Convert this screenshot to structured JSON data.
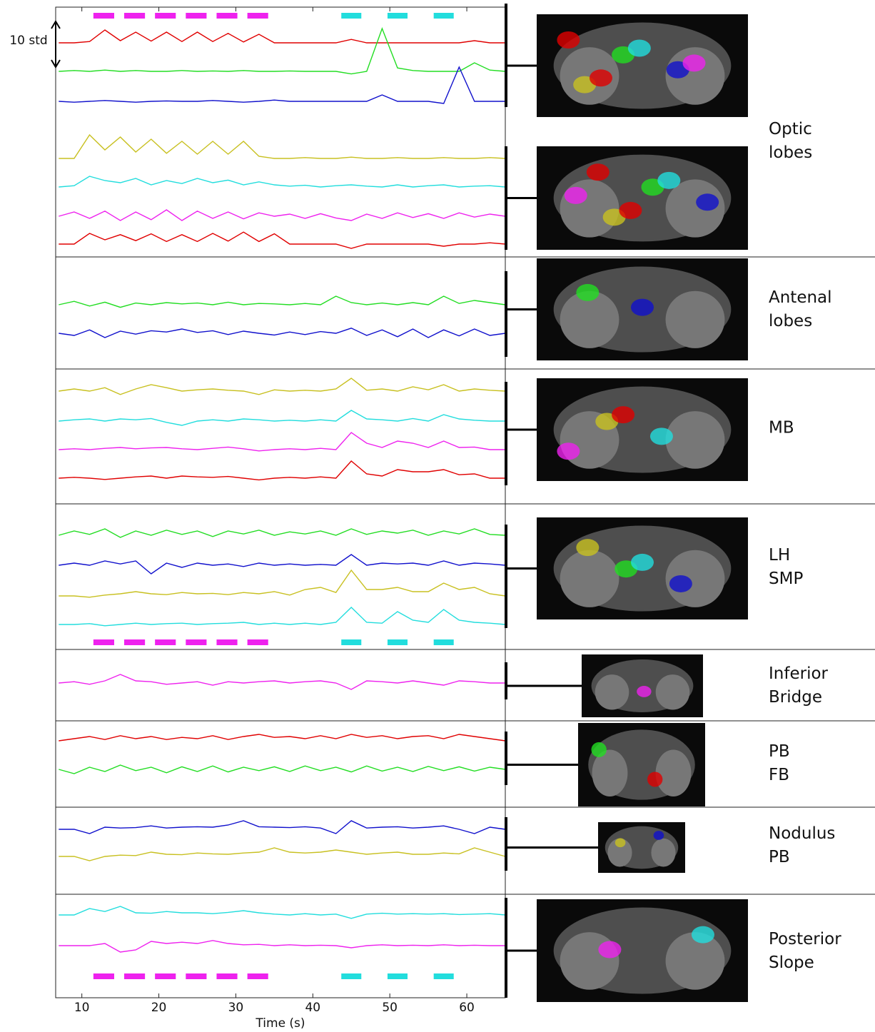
{
  "chart_data": {
    "type": "line",
    "xlabel": "Time (s)",
    "scale_label": "10 std",
    "xlim": [
      6.6,
      65
    ],
    "xticks": [
      10,
      20,
      30,
      40,
      50,
      60
    ],
    "x": [
      7,
      9,
      11,
      13,
      15,
      17,
      19,
      21,
      23,
      25,
      27,
      29,
      31,
      33,
      35,
      37,
      39,
      41,
      43,
      45,
      47,
      49,
      51,
      53,
      55,
      57,
      59,
      61,
      63,
      65
    ],
    "stimuli": [
      {
        "color": "#ee22ee",
        "intervals": [
          [
            11.5,
            14.2
          ],
          [
            15.5,
            18.2
          ],
          [
            19.5,
            22.2
          ],
          [
            23.5,
            26.2
          ],
          [
            27.5,
            30.2
          ],
          [
            31.5,
            34.2
          ]
        ]
      },
      {
        "color": "#22dddd",
        "intervals": [
          [
            43.7,
            46.3
          ],
          [
            49.7,
            52.3
          ],
          [
            55.7,
            58.3
          ]
        ]
      }
    ],
    "panels": [
      {
        "label": [
          "Optic",
          "lobes"
        ],
        "series": [
          {
            "color": "#e00000",
            "values": [
              0,
              0,
              0.3,
              3,
              0.5,
              2.5,
              0.4,
              2.5,
              0.3,
              2.5,
              0.3,
              2.2,
              0.2,
              2,
              0,
              0,
              0,
              0,
              0,
              0.8,
              0,
              0,
              0,
              0,
              0,
              0,
              0,
              0.5,
              0,
              0
            ]
          },
          {
            "color": "#22dd22",
            "values": [
              0,
              0.2,
              0,
              0.3,
              0,
              0.2,
              0,
              0,
              0.2,
              0,
              0.1,
              0,
              0.2,
              0,
              0,
              0.1,
              0,
              0,
              0,
              -0.6,
              0,
              10,
              0.8,
              0.2,
              0,
              0,
              0,
              2,
              0.3,
              0
            ]
          },
          {
            "color": "#1010cc",
            "values": [
              0,
              -0.2,
              0,
              0.2,
              0,
              -0.2,
              0,
              0.1,
              0,
              0,
              0.2,
              0,
              -0.2,
              0,
              0.3,
              0,
              0,
              0,
              0,
              0,
              0,
              1.5,
              0,
              0,
              0,
              -0.5,
              8,
              0,
              0,
              0
            ]
          },
          {
            "color": "#c8c020",
            "values": [
              0,
              0,
              5.5,
              2,
              5,
              1.5,
              4.5,
              1.2,
              4,
              1,
              4,
              1,
              4,
              0.5,
              0,
              0,
              0.2,
              0,
              0,
              0.3,
              0,
              0,
              0.2,
              0,
              0,
              0.2,
              0,
              0,
              0.2,
              0
            ]
          },
          {
            "color": "#22dddd",
            "values": [
              0,
              0.3,
              2.5,
              1.5,
              1,
              2,
              0.5,
              1.5,
              0.8,
              2,
              1,
              1.6,
              0.5,
              1.2,
              0.5,
              0.2,
              0.4,
              0,
              0.3,
              0.5,
              0.2,
              0,
              0.5,
              0,
              0.3,
              0.5,
              0,
              0.2,
              0.3,
              0
            ]
          },
          {
            "color": "#ee22ee",
            "values": [
              0,
              1,
              -0.5,
              1.2,
              -1,
              1,
              -0.8,
              1.5,
              -1,
              1.2,
              -0.5,
              1,
              -0.6,
              0.8,
              0,
              0.5,
              -0.5,
              0.6,
              -0.4,
              -1,
              0.5,
              -0.5,
              0.8,
              -0.3,
              0.6,
              -0.5,
              0.8,
              -0.2,
              0.5,
              0
            ]
          },
          {
            "color": "#e00000",
            "values": [
              0,
              0,
              2.5,
              1,
              2.2,
              0.8,
              2.4,
              0.6,
              2.2,
              0.6,
              2.5,
              0.7,
              2.8,
              0.6,
              2.4,
              0,
              0,
              0,
              0,
              -1,
              0,
              0,
              0,
              0,
              0,
              -0.5,
              0,
              0,
              0.3,
              0
            ]
          }
        ]
      },
      {
        "label": [
          "Antenal",
          "lobes"
        ],
        "series": [
          {
            "color": "#22dd22",
            "values": [
              0,
              0.8,
              -0.3,
              0.6,
              -0.6,
              0.4,
              0,
              0.5,
              0.2,
              0.4,
              0,
              0.6,
              0,
              0.3,
              0.2,
              0,
              0.3,
              0,
              2,
              0.5,
              0,
              0.4,
              0,
              0.5,
              0,
              2,
              0.3,
              1,
              0.5,
              0
            ]
          },
          {
            "color": "#1010cc",
            "values": [
              0,
              -0.5,
              0.8,
              -1,
              0.5,
              -0.2,
              0.6,
              0.3,
              1,
              0.2,
              0.6,
              -0.3,
              0.5,
              0,
              -0.4,
              0.3,
              -0.3,
              0.4,
              0,
              1.2,
              -0.5,
              0.8,
              -0.8,
              1,
              -1,
              0.8,
              -0.6,
              1,
              -0.5,
              0
            ]
          }
        ]
      },
      {
        "label": [
          "MB"
        ],
        "series": [
          {
            "color": "#c8c020",
            "values": [
              0,
              0.5,
              0,
              0.8,
              -0.8,
              0.5,
              1.5,
              0.8,
              0,
              0.3,
              0.5,
              0.2,
              0,
              -0.8,
              0.3,
              0,
              0.2,
              0,
              0.5,
              3,
              0.2,
              0.5,
              0,
              1,
              0.3,
              1.5,
              0,
              0.5,
              0.2,
              0
            ]
          },
          {
            "color": "#22dddd",
            "values": [
              0,
              0.3,
              0.5,
              0,
              0.5,
              0.3,
              0.6,
              -0.3,
              -1,
              0,
              0.3,
              0,
              0.5,
              0.3,
              0,
              0.2,
              0,
              0.3,
              0,
              2.5,
              0.5,
              0.3,
              0,
              0.6,
              0,
              1.5,
              0.5,
              0.2,
              0,
              0
            ]
          },
          {
            "color": "#ee22ee",
            "values": [
              0,
              0.2,
              0,
              0.3,
              0.5,
              0.2,
              0.4,
              0.5,
              0.2,
              0,
              0.3,
              0.6,
              0.2,
              -0.3,
              0,
              0.2,
              0,
              0.3,
              0,
              4,
              1.5,
              0.5,
              2,
              1.5,
              0.5,
              2,
              0.5,
              0.6,
              0,
              0
            ]
          },
          {
            "color": "#e00000",
            "values": [
              0,
              0.2,
              0,
              -0.3,
              0,
              0.3,
              0.5,
              0,
              0.5,
              0.3,
              0.2,
              0.4,
              0,
              -0.4,
              0,
              0.2,
              0,
              0.3,
              0,
              4,
              1,
              0.5,
              2,
              1.5,
              1.5,
              2,
              0.8,
              1,
              0,
              0
            ]
          }
        ]
      },
      {
        "label": [
          "LH",
          "SMP"
        ],
        "series": [
          {
            "color": "#22dd22",
            "values": [
              0,
              1,
              0.2,
              1.5,
              -0.5,
              1,
              0,
              1.2,
              0.2,
              1,
              -0.3,
              1,
              0.3,
              1.2,
              0,
              0.8,
              0.3,
              1,
              0,
              1.5,
              0.2,
              1,
              0.5,
              1.2,
              0,
              1,
              0.3,
              1.5,
              0.2,
              0
            ]
          },
          {
            "color": "#1010cc",
            "values": [
              0,
              0.5,
              0,
              1,
              0.3,
              1,
              -2,
              0.5,
              -0.5,
              0.5,
              0,
              0.3,
              -0.3,
              0.5,
              0,
              0.3,
              0,
              0.2,
              0,
              2.5,
              0,
              0.5,
              0.3,
              0.5,
              0,
              1,
              0,
              0.5,
              0.3,
              0
            ]
          },
          {
            "color": "#c8c020",
            "values": [
              0,
              0,
              -0.3,
              0.2,
              0.5,
              1,
              0.5,
              0.3,
              0.8,
              0.5,
              0.6,
              0.3,
              0.8,
              0.5,
              1,
              0.2,
              1.5,
              2,
              0.8,
              6,
              1.5,
              1.5,
              2,
              1,
              1,
              3,
              1.5,
              2,
              0.5,
              0
            ]
          },
          {
            "color": "#22dddd",
            "values": [
              0,
              0,
              0.2,
              -0.3,
              0,
              0.3,
              0,
              0.2,
              0.3,
              0,
              0.2,
              0.3,
              0.5,
              0,
              0.3,
              0,
              0.3,
              0,
              0.5,
              4,
              0.5,
              0.3,
              3,
              1,
              0.5,
              3.5,
              1,
              0.5,
              0.3,
              0
            ]
          }
        ]
      },
      {
        "label": [
          "Inferior",
          "Bridge"
        ],
        "series": [
          {
            "color": "#ee22ee",
            "values": [
              0,
              0.3,
              -0.3,
              0.5,
              2,
              0.5,
              0.3,
              -0.3,
              0,
              0.3,
              -0.5,
              0.3,
              0,
              0.3,
              0.5,
              0,
              0.3,
              0.5,
              0,
              -1.5,
              0.5,
              0.3,
              0,
              0.5,
              0,
              -0.5,
              0.5,
              0.3,
              0,
              0
            ]
          }
        ]
      },
      {
        "label": [
          "PB",
          "FB"
        ],
        "series": [
          {
            "color": "#e00000",
            "values": [
              0,
              0.5,
              1,
              0.3,
              1.2,
              0.5,
              1,
              0.3,
              0.8,
              0.5,
              1.2,
              0.3,
              1,
              1.5,
              0.8,
              1,
              0.5,
              1.2,
              0.5,
              1.5,
              0.8,
              1.2,
              0.5,
              1,
              1.2,
              0.5,
              1.5,
              1,
              0.5,
              0
            ]
          },
          {
            "color": "#22dd22",
            "values": [
              0,
              -1,
              0.5,
              -0.5,
              1,
              -0.3,
              0.5,
              -0.8,
              0.6,
              -0.5,
              0.8,
              -0.6,
              0.5,
              -0.3,
              0.6,
              -0.5,
              0.8,
              -0.3,
              0.5,
              -0.6,
              0.8,
              -0.4,
              0.5,
              -0.5,
              0.7,
              -0.3,
              0.6,
              -0.4,
              0.5,
              0
            ]
          }
        ]
      },
      {
        "label": [
          "Nodulus",
          "PB"
        ],
        "series": [
          {
            "color": "#1010cc",
            "values": [
              0,
              0,
              -1,
              0.5,
              0.3,
              0.4,
              0.8,
              0.3,
              0.5,
              0.6,
              0.5,
              1,
              2,
              0.6,
              0.5,
              0.4,
              0.6,
              0.3,
              -1,
              2,
              0.3,
              0.5,
              0.6,
              0.3,
              0.5,
              0.8,
              0,
              -1,
              0.5,
              0
            ]
          },
          {
            "color": "#c8c020",
            "values": [
              0,
              0,
              -1,
              0,
              0.3,
              0.2,
              1,
              0.5,
              0.4,
              0.8,
              0.6,
              0.5,
              0.8,
              1,
              2,
              1,
              0.8,
              1,
              1.5,
              1,
              0.5,
              0.8,
              1,
              0.5,
              0.5,
              0.8,
              0.6,
              2,
              1,
              0
            ]
          }
        ]
      },
      {
        "label": [
          "Posterior",
          "Slope"
        ],
        "series": [
          {
            "color": "#22dddd",
            "values": [
              0,
              0,
              1.5,
              0.8,
              2,
              0.5,
              0.4,
              0.8,
              0.5,
              0.5,
              0.3,
              0.6,
              1,
              0.5,
              0.2,
              0,
              0.3,
              0,
              0.2,
              -0.8,
              0.2,
              0.4,
              0.2,
              0.3,
              0.2,
              0.3,
              0.1,
              0.2,
              0.3,
              0
            ]
          },
          {
            "color": "#ee22ee",
            "values": [
              0,
              0,
              0,
              0.5,
              -1.5,
              -1,
              1,
              0.5,
              0.8,
              0.5,
              1.2,
              0.5,
              0.2,
              0.3,
              0,
              0.2,
              0,
              0.1,
              0,
              -0.5,
              0,
              0.2,
              0,
              0.1,
              0,
              0.2,
              0,
              0.1,
              0,
              0
            ]
          }
        ]
      }
    ]
  }
}
